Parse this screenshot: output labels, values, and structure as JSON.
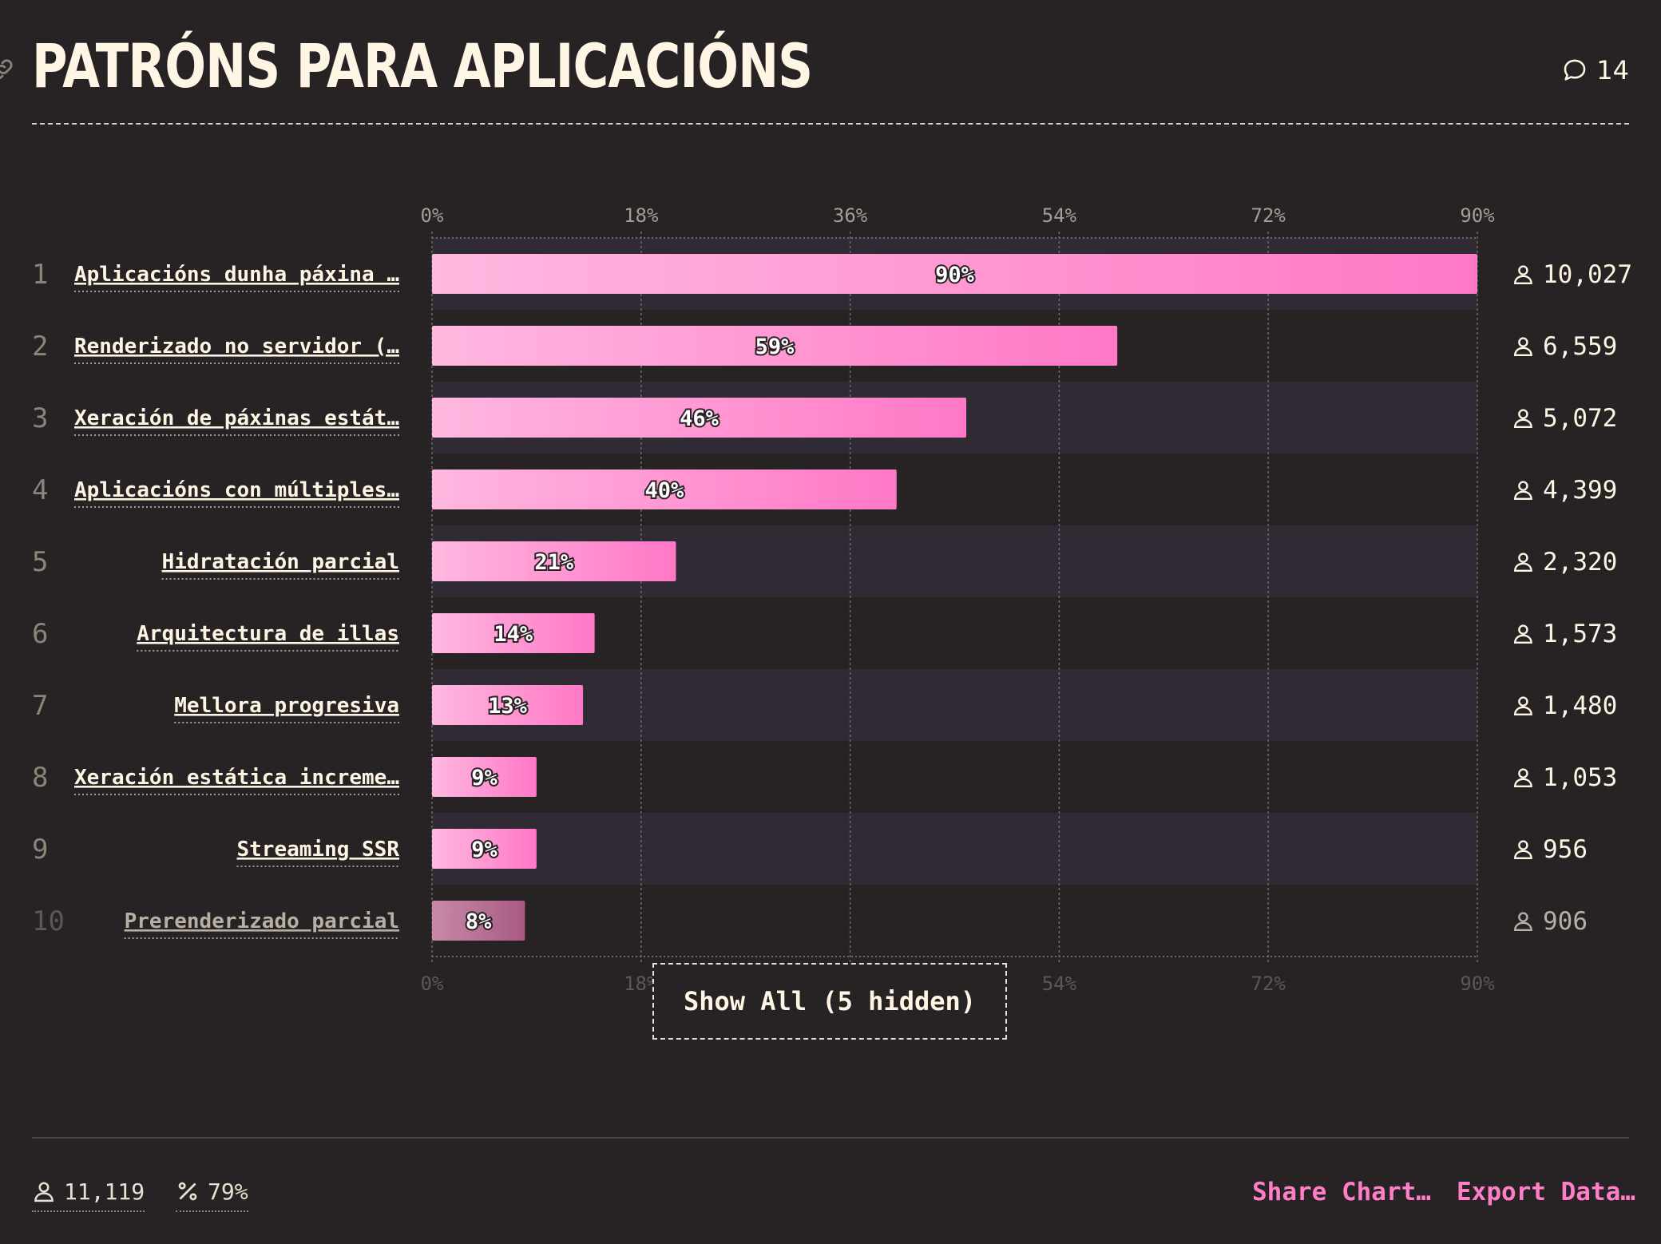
{
  "header": {
    "title": "PATRÓNS PARA APLICACIÓNS",
    "comments_count": "14"
  },
  "chart_data": {
    "type": "bar",
    "orientation": "horizontal",
    "ticks": [
      "0%",
      "18%",
      "36%",
      "54%",
      "72%",
      "90%"
    ],
    "xlim": [
      0,
      90
    ],
    "grid": true,
    "rows": [
      {
        "rank": "1",
        "label": "Aplicacións dunha páxina …",
        "value": 90,
        "value_label": "90%",
        "users": "10,027"
      },
      {
        "rank": "2",
        "label": "Renderizado no servidor (…",
        "value": 59,
        "value_label": "59%",
        "users": "6,559"
      },
      {
        "rank": "3",
        "label": "Xeración de páxinas estát…",
        "value": 46,
        "value_label": "46%",
        "users": "5,072"
      },
      {
        "rank": "4",
        "label": "Aplicacións con múltiples…",
        "value": 40,
        "value_label": "40%",
        "users": "4,399"
      },
      {
        "rank": "5",
        "label": "Hidratación parcial",
        "value": 21,
        "value_label": "21%",
        "users": "2,320"
      },
      {
        "rank": "6",
        "label": "Arquitectura de illas",
        "value": 14,
        "value_label": "14%",
        "users": "1,573"
      },
      {
        "rank": "7",
        "label": "Mellora progresiva",
        "value": 13,
        "value_label": "13%",
        "users": "1,480"
      },
      {
        "rank": "8",
        "label": "Xeración estática increme…",
        "value": 9,
        "value_label": "9%",
        "users": "1,053"
      },
      {
        "rank": "9",
        "label": "Streaming SSR",
        "value": 9,
        "value_label": "9%",
        "users": "956"
      },
      {
        "rank": "10",
        "label": "Prerenderizado parcial",
        "value": 8,
        "value_label": "8%",
        "users": "906",
        "faded": true
      }
    ],
    "colors": {
      "bar_start": "#ffb8e0",
      "bar_end": "#ff78c6",
      "faded_bar_start": "#c88aa8",
      "faded_bar_end": "#a85a84",
      "stripe": "#302a35"
    }
  },
  "controls": {
    "show_all_label": "Show All (5 hidden)"
  },
  "footer": {
    "respondents": "11,119",
    "percent": "79%",
    "share_label": "Share Chart…",
    "export_label": "Export Data…"
  },
  "icons": {
    "link": "link-icon",
    "comment": "comment-icon",
    "user": "user-icon",
    "percent": "percent-icon"
  }
}
